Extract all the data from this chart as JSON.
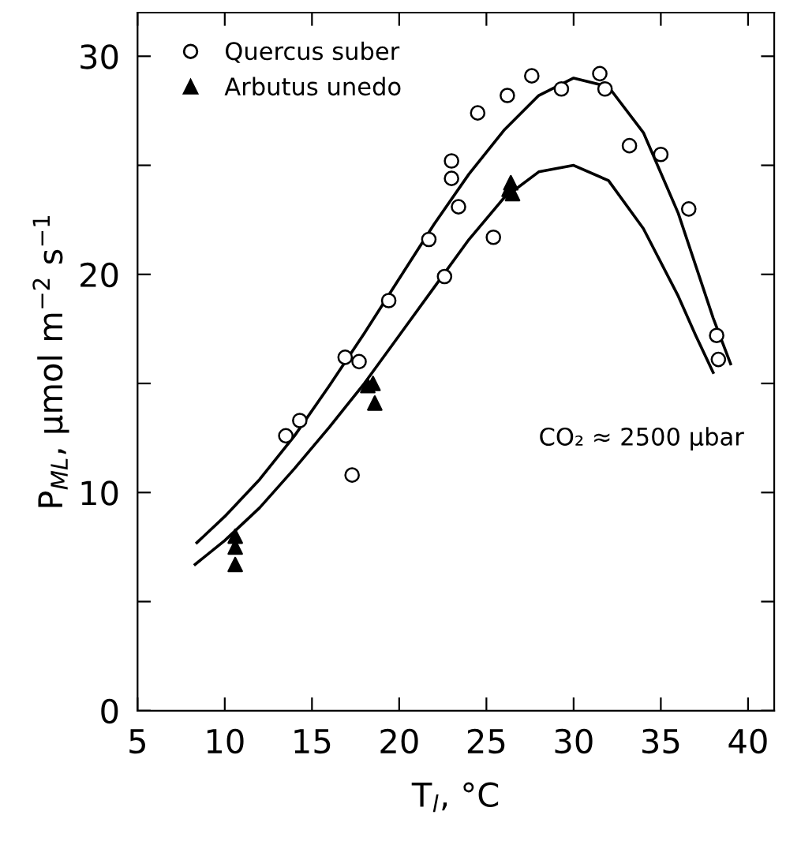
{
  "chart_data": {
    "type": "scatter",
    "xlabel": "T$_{l}$, °C",
    "ylabel": "P$_{ML}$, μmol m$^{−2}$ s$^{−1}$",
    "xlim": [
      5,
      41.5
    ],
    "ylim": [
      0,
      32
    ],
    "xticks": [
      5,
      10,
      15,
      20,
      25,
      30,
      35,
      40
    ],
    "yticks": [
      0,
      {
        "value": 5,
        "label": null
      },
      10,
      {
        "value": 15,
        "label": null
      },
      20,
      {
        "value": 25,
        "label": null
      },
      30
    ],
    "grid": false,
    "legend": "top left",
    "annotations": [
      "CO₂ ≈ 2500 μbar"
    ],
    "series": [
      {
        "name": "Quercus suber",
        "color": "#000000",
        "marker": "circle",
        "x": [
          13.5,
          14.3,
          17.3,
          16.9,
          17.7,
          19.4,
          21.7,
          22.6,
          23.0,
          23.0,
          23.4,
          24.5,
          25.4,
          26.2,
          27.6,
          29.3,
          31.5,
          31.8,
          33.2,
          35.0,
          36.6,
          38.2,
          38.3
        ],
        "values": [
          12.6,
          13.3,
          10.8,
          16.2,
          16.0,
          18.8,
          21.6,
          19.9,
          25.2,
          24.4,
          23.1,
          27.4,
          21.7,
          28.2,
          29.1,
          28.5,
          29.2,
          28.5,
          25.9,
          25.5,
          23.0,
          17.2,
          16.1
        ]
      },
      {
        "name": "Arbutus unedo",
        "color": "#000000",
        "marker": "triangle",
        "x": [
          10.6,
          10.6,
          10.6,
          18.2,
          18.5,
          18.6,
          26.4,
          26.5,
          26.3
        ],
        "values": [
          8.0,
          7.5,
          6.7,
          14.9,
          15.0,
          14.1,
          24.2,
          23.7,
          23.9
        ]
      },
      {
        "type": "line",
        "color": "#000000",
        "x": [
          8.4,
          10,
          12,
          14,
          16,
          18,
          20,
          22,
          24,
          26,
          28,
          30,
          32,
          34,
          36,
          38,
          39
        ],
        "values": [
          7.7,
          8.9,
          10.6,
          12.6,
          14.9,
          17.3,
          19.8,
          22.3,
          24.6,
          26.6,
          28.2,
          29.0,
          28.6,
          26.5,
          22.8,
          18.0,
          15.9
        ]
      },
      {
        "type": "line",
        "color": "#000000",
        "x": [
          8.3,
          10,
          12,
          14,
          16,
          18,
          20,
          22,
          24,
          26,
          28,
          30,
          32,
          34,
          36,
          37,
          38
        ],
        "values": [
          6.7,
          7.8,
          9.3,
          11.1,
          13.0,
          15.0,
          17.2,
          19.4,
          21.6,
          23.5,
          24.7,
          25.0,
          24.3,
          22.1,
          19.0,
          17.2,
          15.5
        ]
      }
    ]
  }
}
